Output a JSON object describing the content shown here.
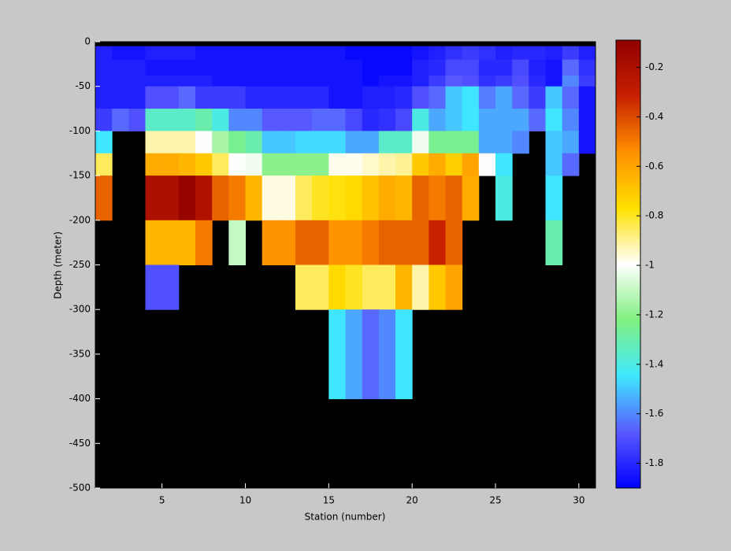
{
  "chart_data": {
    "type": "heatmap",
    "x_label": "Station (number)",
    "y_label": "Depth (meter)",
    "xlim": [
      1,
      31
    ],
    "ylim": [
      -500,
      0
    ],
    "xticks": [
      5,
      10,
      15,
      20,
      25,
      30
    ],
    "yticks": [
      0,
      -50,
      -100,
      -150,
      -200,
      -250,
      -300,
      -350,
      -400,
      -450,
      -500
    ],
    "x_edges": [
      1,
      2,
      3,
      4,
      5,
      6,
      7,
      8,
      9,
      10,
      11,
      12,
      13,
      14,
      15,
      16,
      17,
      18,
      19,
      20,
      21,
      22,
      23,
      24,
      25,
      26,
      27,
      28,
      29,
      30,
      31
    ],
    "y_edges": [
      -5,
      -20,
      -38,
      -50,
      -75,
      -100,
      -125,
      -150,
      -200,
      -250,
      -300,
      -400
    ],
    "background": "#000000",
    "colormap": [
      "#0000ff",
      "#5a5aff",
      "#40e8ff",
      "#80f080",
      "#ffffff",
      "#ffe000",
      "#ff9000",
      "#c82000",
      "#900000"
    ],
    "clim": [
      -1.9,
      -0.09
    ],
    "cticks": [
      -0.2,
      -0.4,
      -0.6,
      -0.8,
      -1,
      -1.2,
      -1.4,
      -1.6,
      -1.8
    ],
    "z": [
      [
        -1.82,
        -1.85,
        -1.85,
        -1.82,
        -1.82,
        -1.82,
        -1.85,
        -1.85,
        -1.85,
        -1.85,
        -1.85,
        -1.85,
        -1.85,
        -1.85,
        -1.85,
        -1.88,
        -1.88,
        -1.88,
        -1.88,
        -1.85,
        -1.82,
        -1.78,
        -1.75,
        -1.78,
        -1.82,
        -1.8,
        -1.8,
        -1.82,
        -1.75,
        -1.82
      ],
      [
        -1.82,
        -1.82,
        -1.82,
        -1.85,
        -1.85,
        -1.85,
        -1.85,
        -1.85,
        -1.85,
        -1.85,
        -1.85,
        -1.85,
        -1.85,
        -1.85,
        -1.85,
        -1.85,
        -1.88,
        -1.88,
        -1.88,
        -1.82,
        -1.8,
        -1.72,
        -1.72,
        -1.8,
        -1.8,
        -1.72,
        -1.82,
        -1.85,
        -1.65,
        -1.78
      ],
      [
        -1.82,
        -1.82,
        -1.82,
        -1.82,
        -1.82,
        -1.82,
        -1.82,
        -1.85,
        -1.85,
        -1.85,
        -1.85,
        -1.85,
        -1.85,
        -1.85,
        -1.85,
        -1.85,
        -1.88,
        -1.85,
        -1.85,
        -1.82,
        -1.75,
        -1.68,
        -1.7,
        -1.78,
        -1.75,
        -1.7,
        -1.8,
        -1.85,
        -1.6,
        -1.75
      ],
      [
        -1.82,
        -1.82,
        -1.82,
        -1.7,
        -1.7,
        -1.65,
        -1.75,
        -1.75,
        -1.75,
        -1.8,
        -1.8,
        -1.8,
        -1.8,
        -1.8,
        -1.85,
        -1.85,
        -1.82,
        -1.82,
        -1.8,
        -1.7,
        -1.65,
        -1.5,
        -1.45,
        -1.62,
        -1.55,
        -1.65,
        -1.75,
        -1.5,
        -1.65,
        -1.85
      ],
      [
        -1.75,
        -1.65,
        -1.7,
        -1.35,
        -1.35,
        -1.35,
        -1.3,
        -1.4,
        -1.6,
        -1.6,
        -1.68,
        -1.68,
        -1.68,
        -1.65,
        -1.65,
        -1.72,
        -1.8,
        -1.78,
        -1.72,
        -1.4,
        -1.55,
        -1.5,
        -1.45,
        -1.55,
        -1.55,
        -1.55,
        -1.65,
        -1.45,
        -1.6,
        -1.85
      ],
      [
        -1.45,
        null,
        null,
        -0.92,
        -0.92,
        -0.92,
        -1.0,
        -1.15,
        -1.25,
        -1.3,
        -1.5,
        -1.5,
        -1.47,
        -1.47,
        -1.47,
        -1.55,
        -1.55,
        -1.35,
        -1.35,
        -1.02,
        -1.25,
        -1.25,
        -1.25,
        -1.55,
        -1.55,
        -1.6,
        null,
        -1.5,
        -1.55,
        -1.85
      ],
      [
        -0.85,
        null,
        null,
        -0.62,
        -0.62,
        -0.65,
        -0.7,
        -0.85,
        -1.0,
        -1.02,
        -1.2,
        -1.2,
        -1.2,
        -1.2,
        -0.98,
        -0.98,
        -0.95,
        -0.92,
        -0.9,
        -0.7,
        -0.62,
        -0.72,
        -0.6,
        -1.0,
        -1.45,
        null,
        null,
        -1.5,
        -1.65,
        null
      ],
      [
        -0.45,
        null,
        null,
        -0.2,
        -0.2,
        -0.12,
        -0.22,
        -0.45,
        -0.5,
        -0.65,
        -0.97,
        -0.97,
        -0.85,
        -0.8,
        -0.78,
        -0.75,
        -0.68,
        -0.62,
        -0.65,
        -0.45,
        -0.5,
        -0.45,
        -0.62,
        null,
        -1.4,
        null,
        null,
        -1.45,
        null,
        null
      ],
      [
        null,
        null,
        null,
        -0.65,
        -0.65,
        -0.65,
        -0.5,
        null,
        -1.1,
        null,
        -0.55,
        -0.55,
        -0.45,
        -0.45,
        -0.55,
        -0.55,
        -0.5,
        -0.45,
        -0.45,
        -0.45,
        -0.32,
        -0.45,
        null,
        null,
        null,
        null,
        null,
        -1.3,
        null,
        null
      ],
      [
        null,
        null,
        null,
        -1.7,
        -1.7,
        null,
        null,
        null,
        null,
        null,
        null,
        null,
        -0.85,
        -0.85,
        -0.75,
        -0.8,
        -0.85,
        -0.85,
        -0.65,
        -0.92,
        -0.7,
        -0.6,
        null,
        null,
        null,
        null,
        null,
        null,
        null,
        null
      ],
      [
        null,
        null,
        null,
        null,
        null,
        null,
        null,
        null,
        null,
        null,
        null,
        null,
        null,
        null,
        -1.45,
        -1.55,
        -1.65,
        -1.6,
        -1.45,
        null,
        null,
        null,
        null,
        null,
        null,
        null,
        null,
        null,
        null,
        null
      ]
    ]
  }
}
